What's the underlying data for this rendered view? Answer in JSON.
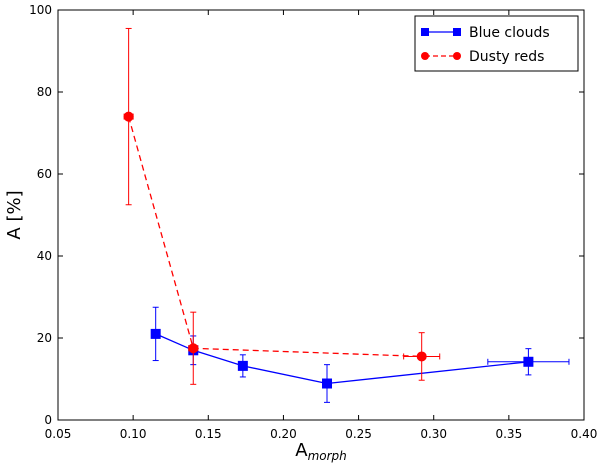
{
  "chart_data": {
    "type": "line",
    "xlabel": "A",
    "xlabel_sub": "morph",
    "ylabel": "A [%]",
    "xlim": [
      0.05,
      0.4
    ],
    "ylim": [
      0,
      100
    ],
    "xticks": [
      "0.05",
      "0.10",
      "0.15",
      "0.20",
      "0.25",
      "0.30",
      "0.35",
      "0.40"
    ],
    "yticks": [
      "0",
      "20",
      "40",
      "60",
      "80",
      "100"
    ],
    "grid": false,
    "legend_position": "top-right",
    "series": [
      {
        "name": "Blue clouds",
        "color": "#0000ff",
        "linestyle": "solid",
        "marker": "square",
        "points": [
          {
            "x": 0.115,
            "y": 21.0,
            "yerr": [
              6.5,
              6.5
            ],
            "xerr": [
              0.0,
              0.0
            ]
          },
          {
            "x": 0.14,
            "y": 17.0,
            "yerr": [
              3.5,
              3.5
            ],
            "xerr": [
              0.0,
              0.0
            ]
          },
          {
            "x": 0.173,
            "y": 13.2,
            "yerr": [
              2.7,
              2.7
            ],
            "xerr": [
              0.0,
              0.0
            ]
          },
          {
            "x": 0.229,
            "y": 8.9,
            "yerr": [
              4.6,
              4.6
            ],
            "xerr": [
              0.0,
              0.0
            ]
          },
          {
            "x": 0.363,
            "y": 14.2,
            "yerr": [
              3.2,
              3.2
            ],
            "xerr": [
              0.027,
              0.027
            ]
          }
        ]
      },
      {
        "name": "Dusty reds",
        "color": "#ff0000",
        "linestyle": "dashed",
        "marker": "circle",
        "points": [
          {
            "x": 0.097,
            "y": 74.0,
            "yerr": [
              21.5,
              21.5
            ],
            "xerr": [
              0.003,
              0.003
            ]
          },
          {
            "x": 0.14,
            "y": 17.5,
            "yerr": [
              8.8,
              8.8
            ],
            "xerr": [
              0.003,
              0.003
            ]
          },
          {
            "x": 0.292,
            "y": 15.5,
            "yerr": [
              5.8,
              5.8
            ],
            "xerr": [
              0.012,
              0.012
            ]
          }
        ]
      }
    ]
  }
}
